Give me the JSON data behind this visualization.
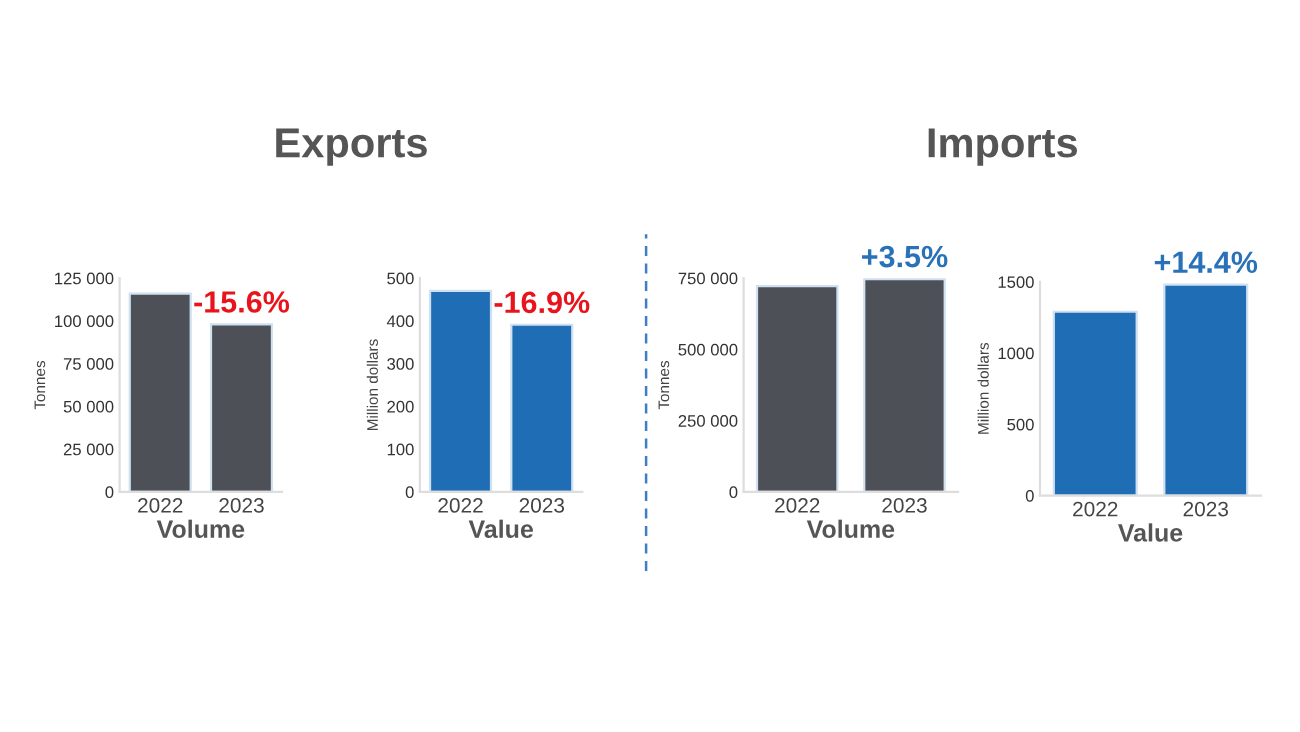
{
  "chart_data": [
    {
      "type": "bar",
      "title": "Exports",
      "xlabel": "Volume",
      "ylabel": "Tonnes",
      "categories": [
        "2022",
        "2023"
      ],
      "values": [
        116000,
        98000
      ],
      "color": "#4d5057",
      "ylim": [
        0,
        125000
      ],
      "yticks": [
        0,
        {
          "value": 25000,
          "label": "25 000"
        },
        {
          "value": 50000,
          "label": "50 000"
        },
        {
          "value": 75000,
          "label": "75 000"
        },
        {
          "value": 100000,
          "label": "100 000"
        },
        {
          "value": 125000,
          "label": "125 000"
        }
      ],
      "grid": false,
      "annotations": [
        {
          "text": "-15.6%",
          "x": "2023",
          "y": 98000
        }
      ]
    },
    {
      "type": "bar",
      "xlabel": "Value",
      "ylabel": "Million dollars",
      "categories": [
        "2022",
        "2023"
      ],
      "values": [
        470,
        391
      ],
      "color": "#1f6db5",
      "ylim": [
        0,
        500
      ],
      "yticks": [
        0,
        100,
        200,
        300,
        400,
        500
      ],
      "grid": false,
      "annotations": [
        {
          "text": "-16.9%",
          "x": "2023",
          "y": 391
        }
      ]
    },
    {
      "type": "bar",
      "title": "Imports",
      "xlabel": "Volume",
      "ylabel": "Tonnes",
      "categories": [
        "2022",
        "2023"
      ],
      "values": [
        722000,
        747000
      ],
      "color": "#4d5057",
      "ylim": [
        0,
        750000
      ],
      "yticks": [
        0,
        {
          "value": 250000,
          "label": "250 000"
        },
        {
          "value": 500000,
          "label": "500 000"
        },
        {
          "value": 750000,
          "label": "750 000"
        }
      ],
      "grid": false,
      "annotations": [
        {
          "text": "+3.5%",
          "x": "2023",
          "y": 747000
        }
      ]
    },
    {
      "type": "bar",
      "xlabel": "Value",
      "ylabel": "Million dollars",
      "categories": [
        "2022",
        "2023"
      ],
      "values": [
        1290,
        1480
      ],
      "color": "#1f6db5",
      "ylim": [
        0,
        1500
      ],
      "yticks": [
        0,
        500,
        1000,
        1500
      ],
      "grid": false,
      "annotations": [
        {
          "text": "+14.4%",
          "x": "2023",
          "y": 1480
        }
      ]
    }
  ]
}
